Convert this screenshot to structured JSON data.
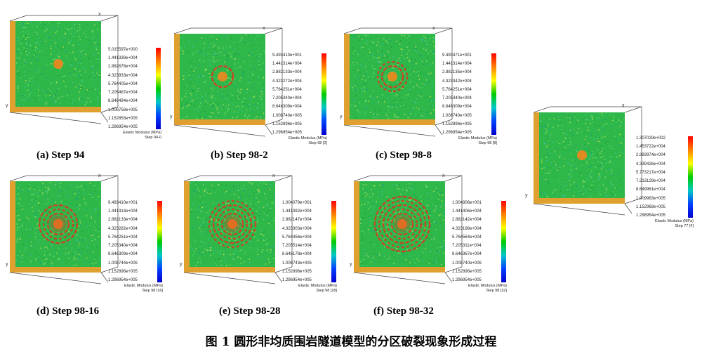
{
  "colorbar_gradient": [
    "#ff0000",
    "#ff8000",
    "#ffff00",
    "#00cc00",
    "#00c8c8",
    "#0040ff",
    "#0000cc"
  ],
  "colors": {
    "face": "#2fb84a",
    "side": "#e0a030",
    "ring": "#d63a22",
    "core": "#e08a22"
  },
  "panels": [
    {
      "id": "a",
      "caption": "(a) Step 94",
      "ticks": [
        "5.015597e+000",
        "1.441339e+004",
        "2.882678e+004",
        "4.323933e+004",
        "5.764405e+004",
        "7.205467e+004",
        "8.646494e+004",
        "1.008758e+005",
        "1.152853e+005",
        "1.296954e+005"
      ],
      "cbar_label": "Elastic Modulus (MPa)",
      "step_label": "Step 94-0",
      "crack_rings": 0,
      "axis_x": "x",
      "axis_y": "y"
    },
    {
      "id": "b",
      "caption": "(b) Step 98-2",
      "ticks": [
        "9.493410e+001",
        "1.441314e+004",
        "2.882133e+004",
        "4.323272e+004",
        "5.764251e+004",
        "7.205340e+004",
        "8.646309e+004",
        "1.008740e+005",
        "1.152896e+005",
        "1.296954e+005"
      ],
      "cbar_label": "Elastic Modulus (MPa)",
      "step_label": "Step 98 [2]",
      "crack_rings": 1,
      "axis_x": "x",
      "axis_y": "y"
    },
    {
      "id": "c",
      "caption": "(c) Step 98-8",
      "ticks": [
        "9.493471e+001",
        "1.441314e+004",
        "2.882135e+004",
        "4.323342e+004",
        "5.764251e+004",
        "7.205340e+004",
        "8.646309e+004",
        "1.008740e+005",
        "1.152896e+005",
        "1.296954e+005"
      ],
      "cbar_label": "Elastic Modulus (MPa)",
      "step_label": "Step 98 [8]",
      "crack_rings": 2,
      "axis_x": "x",
      "axis_y": "y"
    },
    {
      "id": "d",
      "caption": "(d) Step 98-16",
      "ticks": [
        "9.493410e+001",
        "1.441314e+004",
        "2.882133e+004",
        "4.323282e+004",
        "5.764251e+004",
        "7.205340e+004",
        "8.646309e+004",
        "1.008744e+005",
        "1.152896e+005",
        "1.296954e+005"
      ],
      "cbar_label": "Elastic Modulus (MPa)",
      "step_label": "Step 98 [16]",
      "crack_rings": 3,
      "axis_x": "x",
      "axis_y": "y"
    },
    {
      "id": "e",
      "caption": "(e) Step 98-28",
      "ticks": [
        "1.004079e+001",
        "1.441392e+004",
        "2.882147e+004",
        "4.323303e+004",
        "5.764456e+004",
        "7.205514e+004",
        "8.646178e+004",
        "1.008743e+005",
        "1.152896e+005",
        "1.296954e+005"
      ],
      "cbar_label": "Elastic Modulus (MPa)",
      "step_label": "Step 98 [28]",
      "crack_rings": 4,
      "axis_x": "x",
      "axis_y": "y"
    },
    {
      "id": "f",
      "caption": "(f) Step 98-32",
      "ticks": [
        "1.004806e+001",
        "1.441406e+004",
        "2.882142e+004",
        "4.323198e+004",
        "5.764564e+004",
        "7.205311e+004",
        "8.646367e+004",
        "1.008740e+005",
        "1.152896e+005",
        "1.296954e+005"
      ],
      "cbar_label": "Elastic Modulus (MPa)",
      "step_label": "Step 98 [32]",
      "crack_rings": 5,
      "axis_x": "x",
      "axis_y": "y"
    },
    {
      "id": "g",
      "caption": "",
      "ticks": [
        "1.307029e+002",
        "1.453722e+004",
        "2.893974e+004",
        "4.339426e+004",
        "5.773217e+004",
        "7.213129e+004",
        "8.649961e+004",
        "1.009983e+005",
        "1.152968e+005",
        "1.296954e+005"
      ],
      "cbar_label": "Elastic Modulus (MPa)",
      "step_label": "Step 77 [4]",
      "crack_rings": 0,
      "axis_x": "x",
      "axis_y": "y"
    }
  ],
  "figure_caption": "图 1 圆形非均质围岩隧道模型的分区破裂现象形成过程"
}
